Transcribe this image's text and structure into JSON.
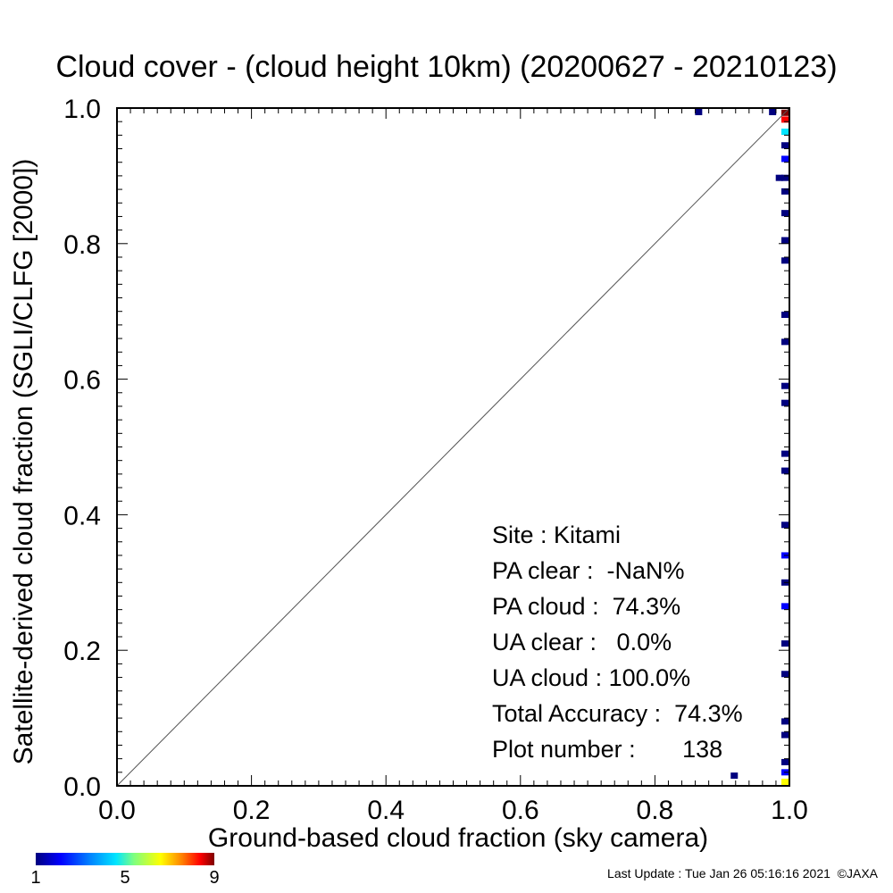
{
  "title": "Cloud cover - (cloud height 10km)  (20200627 - 20210123)",
  "stats": {
    "site": "Site : Kitami",
    "pa_clear": "PA clear :  -NaN%",
    "pa_cloud": "PA cloud :  74.3%",
    "ua_clear": "UA clear :   0.0%",
    "ua_cloud": "UA cloud : 100.0%",
    "total_accuracy": "Total Accuracy :  74.3%",
    "plot_number": "Plot number :       138"
  },
  "colorbar": {
    "ticks": [
      "1",
      "5",
      "9"
    ],
    "colors": [
      "#00007f",
      "#0000ff",
      "#0080ff",
      "#00e5ff",
      "#7fff7f",
      "#ffff00",
      "#ff8000",
      "#ff0000",
      "#7f0000"
    ]
  },
  "footer": "Last Update : Tue Jan 26 05:16:16 2021  ©JAXA",
  "chart_data": {
    "type": "heatmap",
    "xlabel": "Ground-based cloud fraction (sky camera)",
    "ylabel": "Satellite-derived cloud fraction (SGLI/CLFG [2000])",
    "xlim": [
      0,
      1
    ],
    "ylim": [
      0,
      1
    ],
    "xticks": [
      "0.0",
      "0.2",
      "0.4",
      "0.6",
      "0.8",
      "1.0"
    ],
    "yticks": [
      "0.0",
      "0.2",
      "0.4",
      "0.6",
      "0.8",
      "1.0"
    ],
    "diagonal_line": true,
    "grid": false,
    "color_scale": [
      1,
      9
    ],
    "cells": [
      {
        "x": 0.865,
        "y": 0.995,
        "count": 1
      },
      {
        "x": 0.975,
        "y": 0.995,
        "count": 1
      },
      {
        "x": 0.997,
        "y": 0.993,
        "count": 9
      },
      {
        "x": 0.997,
        "y": 0.983,
        "count": 8
      },
      {
        "x": 0.997,
        "y": 0.965,
        "count": 4
      },
      {
        "x": 0.997,
        "y": 0.945,
        "count": 1
      },
      {
        "x": 0.997,
        "y": 0.925,
        "count": 2
      },
      {
        "x": 0.985,
        "y": 0.897,
        "count": 1
      },
      {
        "x": 0.997,
        "y": 0.897,
        "count": 1
      },
      {
        "x": 0.997,
        "y": 0.877,
        "count": 1
      },
      {
        "x": 0.997,
        "y": 0.845,
        "count": 1
      },
      {
        "x": 0.997,
        "y": 0.805,
        "count": 1
      },
      {
        "x": 0.997,
        "y": 0.775,
        "count": 1
      },
      {
        "x": 0.997,
        "y": 0.695,
        "count": 1
      },
      {
        "x": 0.997,
        "y": 0.655,
        "count": 1
      },
      {
        "x": 0.997,
        "y": 0.59,
        "count": 1
      },
      {
        "x": 0.997,
        "y": 0.565,
        "count": 1
      },
      {
        "x": 0.997,
        "y": 0.49,
        "count": 1
      },
      {
        "x": 0.997,
        "y": 0.465,
        "count": 1
      },
      {
        "x": 0.997,
        "y": 0.385,
        "count": 1
      },
      {
        "x": 0.997,
        "y": 0.34,
        "count": 2
      },
      {
        "x": 0.997,
        "y": 0.3,
        "count": 1
      },
      {
        "x": 0.997,
        "y": 0.265,
        "count": 2
      },
      {
        "x": 0.997,
        "y": 0.21,
        "count": 1
      },
      {
        "x": 0.997,
        "y": 0.165,
        "count": 1
      },
      {
        "x": 0.997,
        "y": 0.095,
        "count": 1
      },
      {
        "x": 0.997,
        "y": 0.075,
        "count": 1
      },
      {
        "x": 0.997,
        "y": 0.035,
        "count": 1
      },
      {
        "x": 0.997,
        "y": 0.02,
        "count": 2
      },
      {
        "x": 0.997,
        "y": 0.005,
        "count": 6
      },
      {
        "x": 0.918,
        "y": 0.015,
        "count": 1
      }
    ]
  }
}
